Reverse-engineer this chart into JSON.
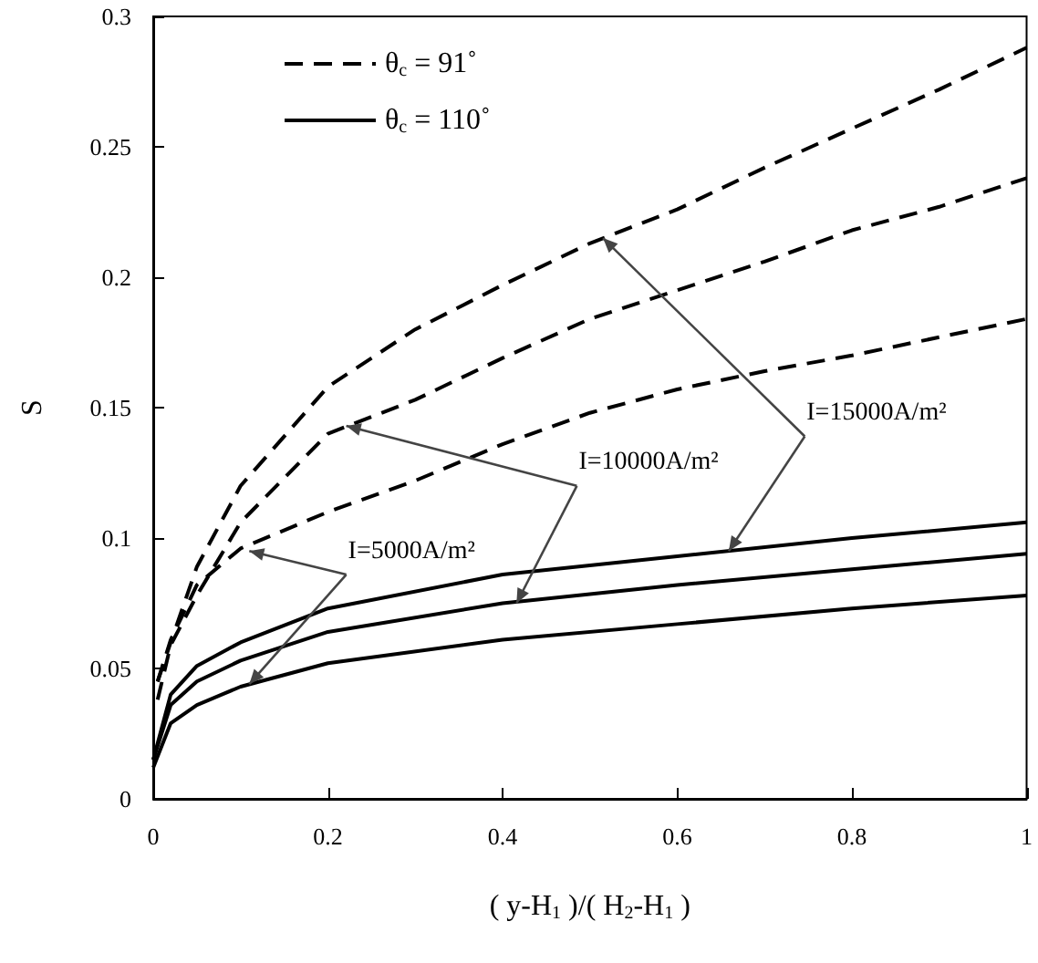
{
  "chart_data": {
    "type": "line",
    "xlabel": "( y-H$_{1}$ )/( H$_{2}$-H$_{1}$ )",
    "ylabel": "S",
    "xlim": [
      0,
      1
    ],
    "xticks": [
      0,
      0.2,
      0.4,
      0.6,
      0.8,
      1
    ],
    "ylim": [
      0,
      0.3
    ],
    "yticks": [
      0,
      0.05,
      0.1,
      0.15,
      0.2,
      0.25,
      0.3
    ],
    "grid": false,
    "legend": "top left",
    "marker": "none",
    "series": [
      {
        "name": "θ$_{c}$ = 91˚",
        "color": "#000000",
        "line_style": "dashed",
        "x": [
          0.005,
          0.02,
          0.05,
          0.1,
          0.2,
          0.3,
          0.4,
          0.5,
          0.6,
          0.7,
          0.8,
          0.9,
          1
        ],
        "values": [
          0.045,
          0.061,
          0.082,
          0.096,
          0.11,
          0.122,
          0.136,
          0.148,
          0.157,
          0.164,
          0.17,
          0.177,
          0.184
        ]
      },
      {
        "color": "#000000",
        "line_style": "dashed",
        "x": [
          0.005,
          0.02,
          0.05,
          0.1,
          0.2,
          0.3,
          0.4,
          0.5,
          0.6,
          0.7,
          0.8,
          0.9,
          1
        ],
        "values": [
          0.038,
          0.059,
          0.078,
          0.106,
          0.14,
          0.153,
          0.169,
          0.184,
          0.195,
          0.206,
          0.218,
          0.227,
          0.238
        ]
      },
      {
        "color": "#000000",
        "line_style": "dashed",
        "x": [
          0.005,
          0.02,
          0.05,
          0.1,
          0.2,
          0.3,
          0.4,
          0.5,
          0.6,
          0.7,
          0.8,
          0.9,
          1
        ],
        "values": [
          0.045,
          0.06,
          0.089,
          0.12,
          0.158,
          0.18,
          0.197,
          0.213,
          0.226,
          0.242,
          0.257,
          0.272,
          0.288
        ]
      },
      {
        "name": "θ$_{c}$ = 110˚",
        "color": "#000000",
        "line_style": "solid",
        "x": [
          0,
          0.02,
          0.05,
          0.1,
          0.2,
          0.4,
          0.6,
          0.8,
          1
        ],
        "values": [
          0.012,
          0.029,
          0.036,
          0.043,
          0.052,
          0.061,
          0.067,
          0.073,
          0.078
        ]
      },
      {
        "color": "#000000",
        "line_style": "solid",
        "x": [
          0,
          0.02,
          0.05,
          0.1,
          0.2,
          0.4,
          0.6,
          0.8,
          1
        ],
        "values": [
          0.015,
          0.036,
          0.045,
          0.053,
          0.064,
          0.075,
          0.082,
          0.088,
          0.094
        ]
      },
      {
        "color": "#000000",
        "line_style": "solid",
        "x": [
          0,
          0.02,
          0.05,
          0.1,
          0.2,
          0.4,
          0.6,
          0.8,
          1
        ],
        "values": [
          0.015,
          0.04,
          0.051,
          0.06,
          0.073,
          0.086,
          0.093,
          0.1,
          0.106
        ]
      }
    ],
    "annotations": [
      {
        "text": "I=5000A/m²",
        "x": 0.11,
        "y": 0.095
      },
      {
        "text": "I=10000A/m²",
        "x": 0.221,
        "y": 0.143
      },
      {
        "text": "I=15000A/m²",
        "x": 0.515,
        "y": 0.215
      }
    ]
  }
}
